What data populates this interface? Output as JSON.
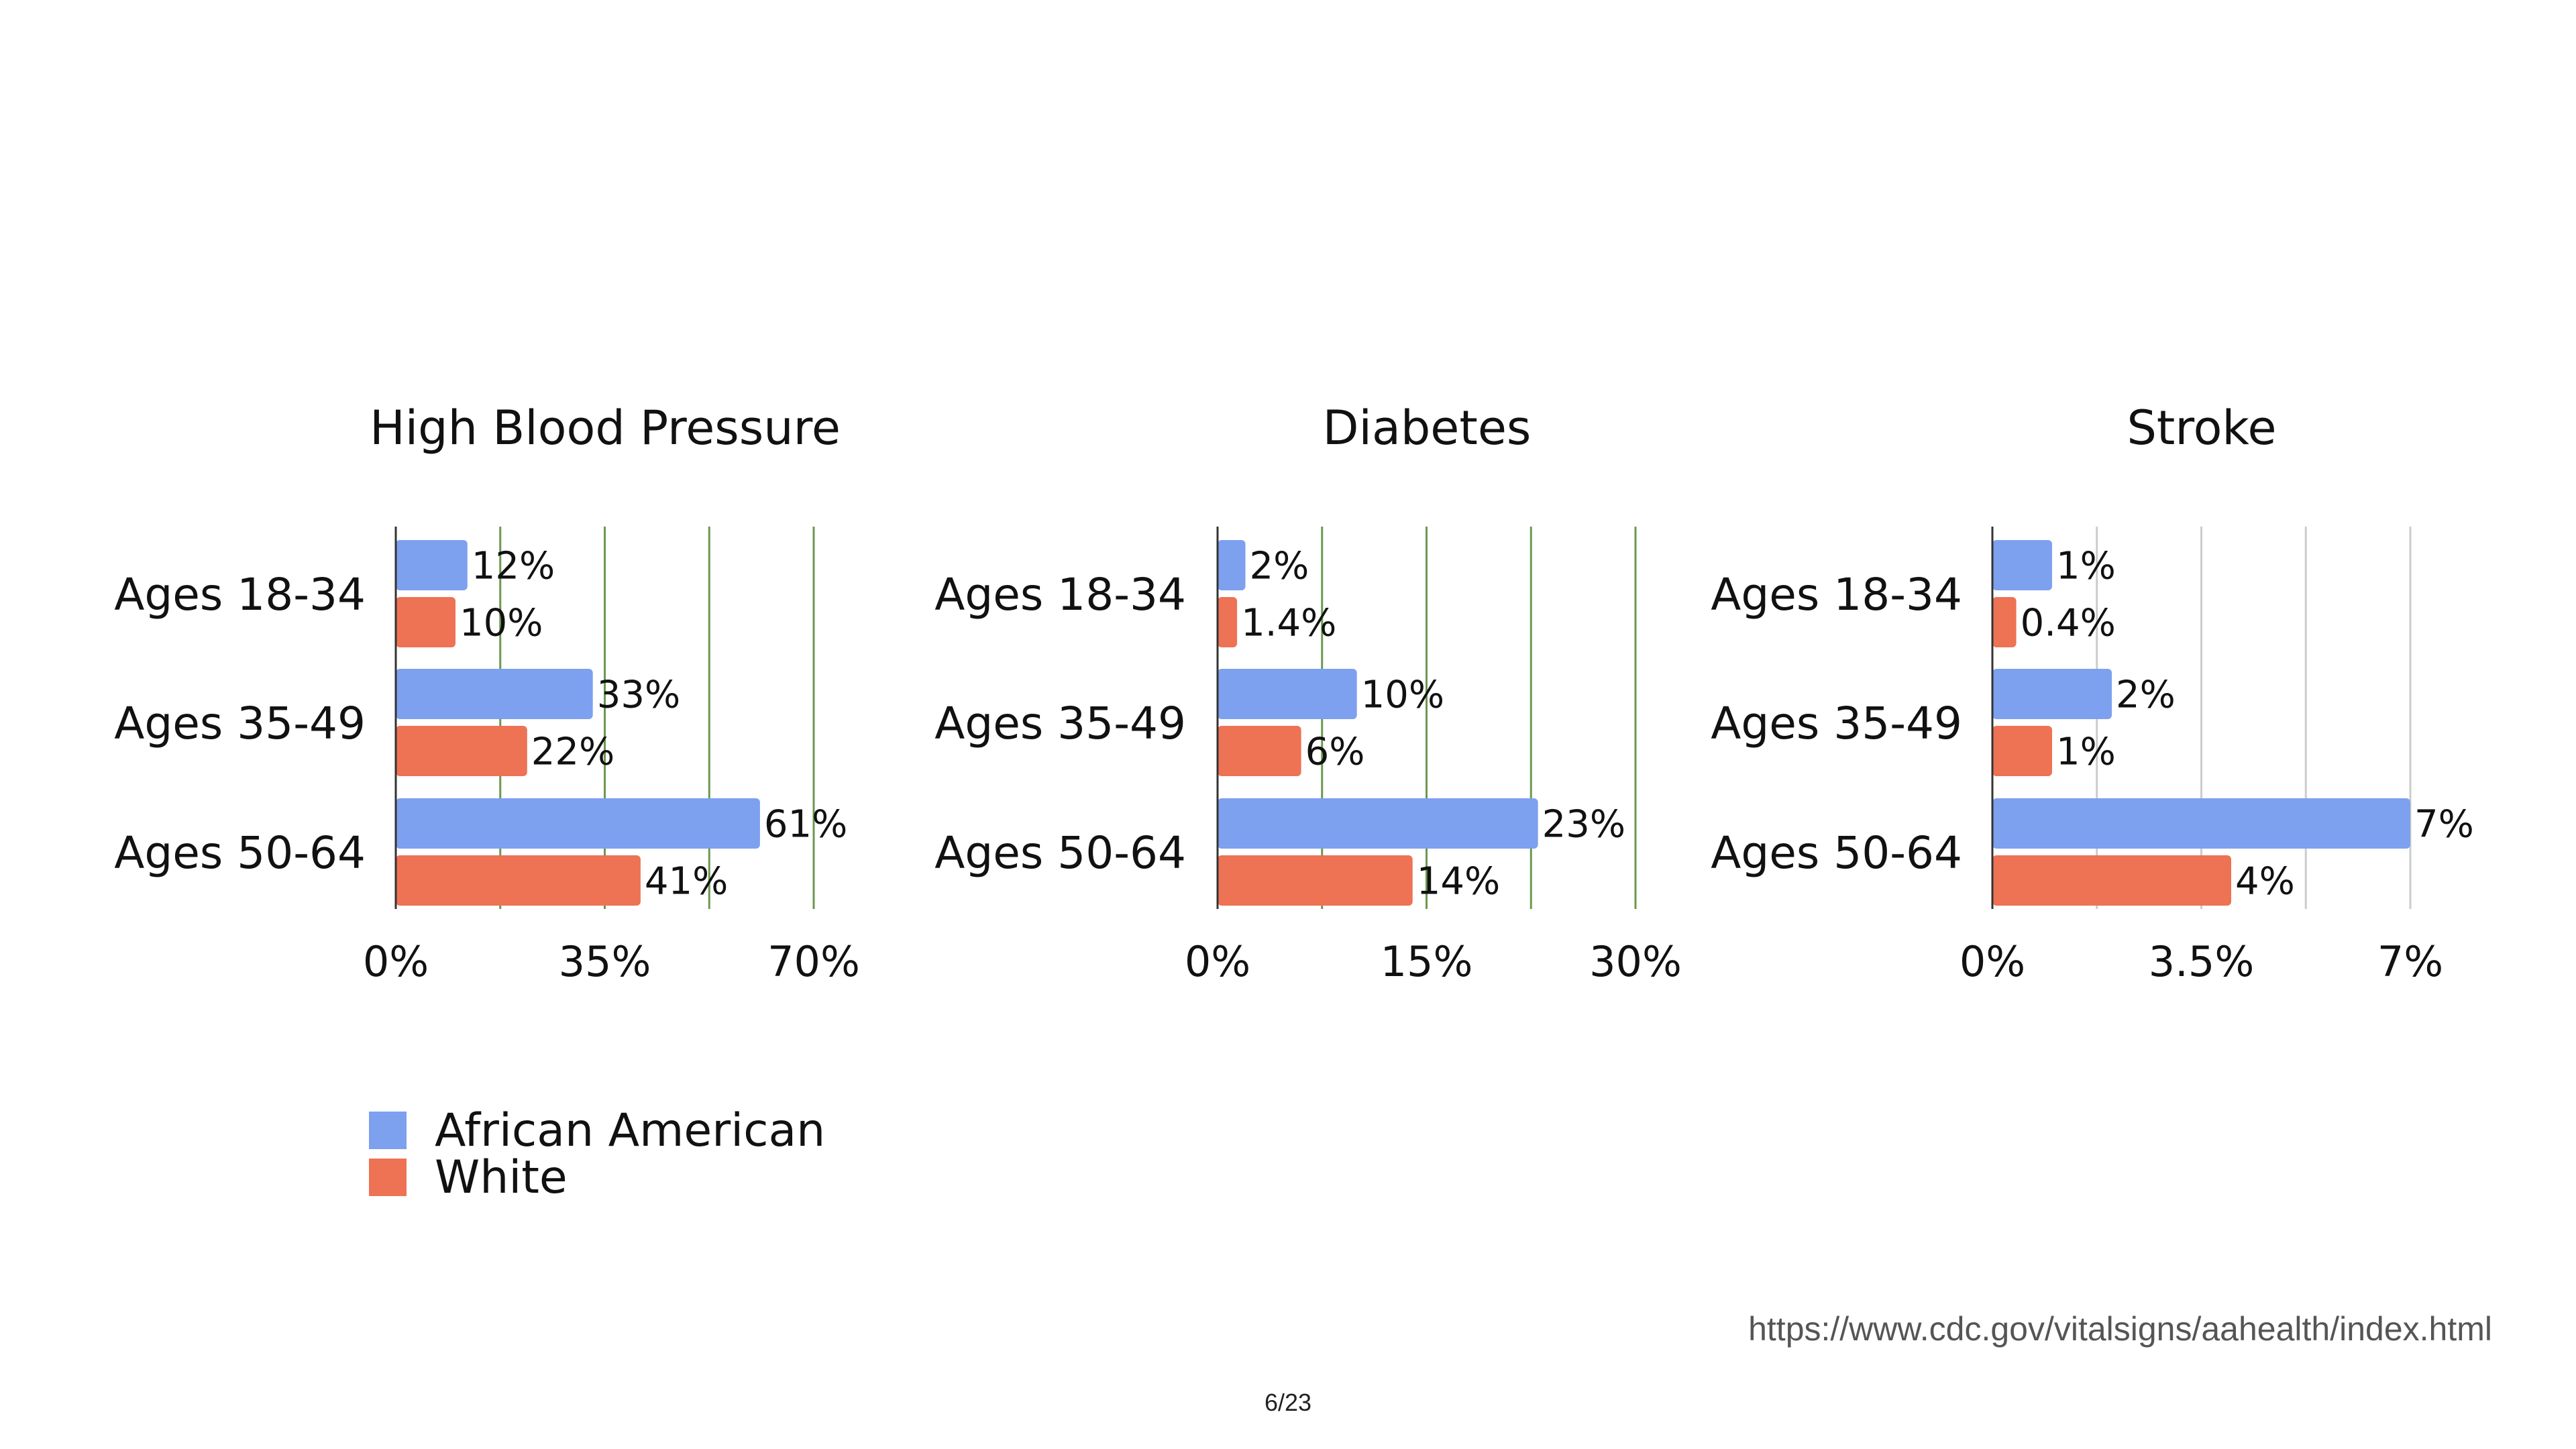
{
  "colors": {
    "african_american": "#7DA0EF",
    "white": "#EE7254",
    "grid_green": "#6A994E",
    "grid_gray": "#CCCCCC",
    "axis": "#333333"
  },
  "legend": {
    "items": [
      {
        "label": "African American",
        "color": "#7DA0EF"
      },
      {
        "label": "White",
        "color": "#EE7254"
      }
    ]
  },
  "footer": {
    "source": "https://www.cdc.gov/vitalsigns/aahealth/index.html",
    "page": "6/23"
  },
  "chart_data": [
    {
      "type": "bar",
      "orientation": "horizontal",
      "title": "High Blood Pressure",
      "categories": [
        "Ages 18-34",
        "Ages 35-49",
        "Ages 50-64"
      ],
      "series": [
        {
          "name": "African American",
          "values": [
            12,
            33,
            61
          ],
          "labels": [
            "12%",
            "33%",
            "61%"
          ]
        },
        {
          "name": "White",
          "values": [
            10,
            22,
            41
          ],
          "labels": [
            "10%",
            "22%",
            "41%"
          ]
        }
      ],
      "xlim": [
        0,
        70
      ],
      "xticks": [
        0,
        35,
        70
      ],
      "xtick_labels": [
        "0%",
        "35%",
        "70%"
      ],
      "gridlines": [
        17.5,
        35,
        52.5,
        70
      ],
      "grid_color": "green",
      "legend": "bottom-left"
    },
    {
      "type": "bar",
      "orientation": "horizontal",
      "title": "Diabetes",
      "categories": [
        "Ages 18-34",
        "Ages 35-49",
        "Ages 50-64"
      ],
      "series": [
        {
          "name": "African American",
          "values": [
            2,
            10,
            23
          ],
          "labels": [
            "2%",
            "10%",
            "23%"
          ]
        },
        {
          "name": "White",
          "values": [
            1.4,
            6,
            14
          ],
          "labels": [
            "1.4%",
            "6%",
            "14%"
          ]
        }
      ],
      "xlim": [
        0,
        30
      ],
      "xticks": [
        0,
        15,
        30
      ],
      "xtick_labels": [
        "0%",
        "15%",
        "30%"
      ],
      "gridlines": [
        7.5,
        15,
        22.5,
        30
      ],
      "grid_color": "green",
      "legend": "bottom-left"
    },
    {
      "type": "bar",
      "orientation": "horizontal",
      "title": "Stroke",
      "categories": [
        "Ages 18-34",
        "Ages 35-49",
        "Ages 50-64"
      ],
      "series": [
        {
          "name": "African American",
          "values": [
            1,
            2,
            7
          ],
          "labels": [
            "1%",
            "2%",
            "7%"
          ]
        },
        {
          "name": "White",
          "values": [
            0.4,
            1,
            4
          ],
          "labels": [
            "0.4%",
            "1%",
            "4%"
          ]
        }
      ],
      "xlim": [
        0,
        7
      ],
      "xticks": [
        0,
        3.5,
        7
      ],
      "xtick_labels": [
        "0%",
        "3.5%",
        "7%"
      ],
      "gridlines": [
        1.75,
        3.5,
        5.25,
        7
      ],
      "grid_color": "gray",
      "legend": "bottom-left"
    }
  ]
}
